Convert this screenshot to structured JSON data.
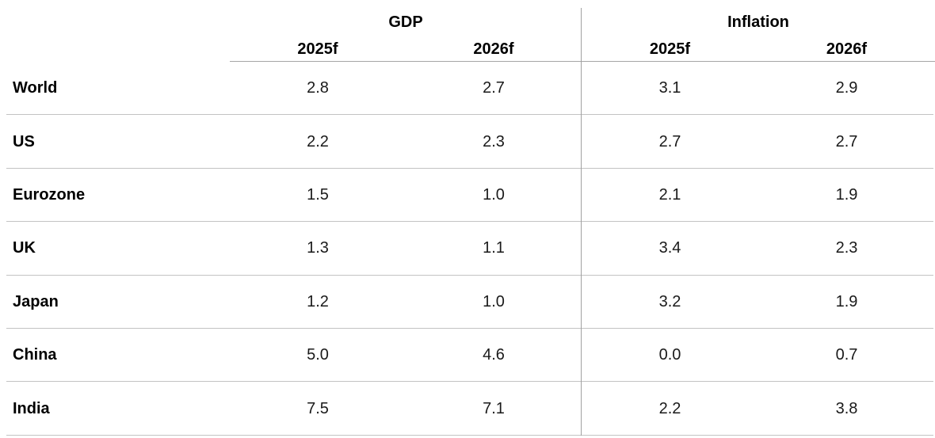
{
  "table": {
    "group_headers": [
      {
        "label": "GDP"
      },
      {
        "label": "Inflation"
      }
    ],
    "year_headers": [
      "2025f",
      "2026f",
      "2025f",
      "2026f"
    ],
    "rows": [
      {
        "label": "World",
        "values": [
          "2.8",
          "2.7",
          "3.1",
          "2.9"
        ]
      },
      {
        "label": "US",
        "values": [
          "2.2",
          "2.3",
          "2.7",
          "2.7"
        ]
      },
      {
        "label": "Eurozone",
        "values": [
          "1.5",
          "1.0",
          "2.1",
          "1.9"
        ]
      },
      {
        "label": "UK",
        "values": [
          "1.3",
          "1.1",
          "3.4",
          "2.3"
        ]
      },
      {
        "label": "Japan",
        "values": [
          "1.2",
          "1.0",
          "3.2",
          "1.9"
        ]
      },
      {
        "label": "China",
        "values": [
          "5.0",
          "4.6",
          "0.0",
          "0.7"
        ]
      },
      {
        "label": "India",
        "values": [
          "7.5",
          "7.1",
          "2.2",
          "3.8"
        ]
      }
    ],
    "colors": {
      "background": "#ffffff",
      "header_text": "#000000",
      "label_text": "#000000",
      "value_text": "#1a1a1a",
      "row_divider": "#c3c3c3",
      "section_divider": "#a0a0a0",
      "header_underline": "#a6a6a6"
    }
  },
  "chart_data": {
    "type": "table",
    "title": "",
    "column_groups": [
      "GDP",
      "Inflation"
    ],
    "columns": [
      "GDP 2025f",
      "GDP 2026f",
      "Inflation 2025f",
      "Inflation 2026f"
    ],
    "categories": [
      "World",
      "US",
      "Eurozone",
      "UK",
      "Japan",
      "China",
      "India"
    ],
    "series": [
      {
        "name": "GDP 2025f",
        "values": [
          2.8,
          2.2,
          1.5,
          1.3,
          1.2,
          5.0,
          7.5
        ]
      },
      {
        "name": "GDP 2026f",
        "values": [
          2.7,
          2.3,
          1.0,
          1.1,
          1.0,
          4.6,
          7.1
        ]
      },
      {
        "name": "Inflation 2025f",
        "values": [
          3.1,
          2.7,
          2.1,
          3.4,
          3.2,
          0.0,
          2.2
        ]
      },
      {
        "name": "Inflation 2026f",
        "values": [
          2.9,
          2.7,
          1.9,
          2.3,
          1.9,
          0.7,
          3.8
        ]
      }
    ]
  }
}
